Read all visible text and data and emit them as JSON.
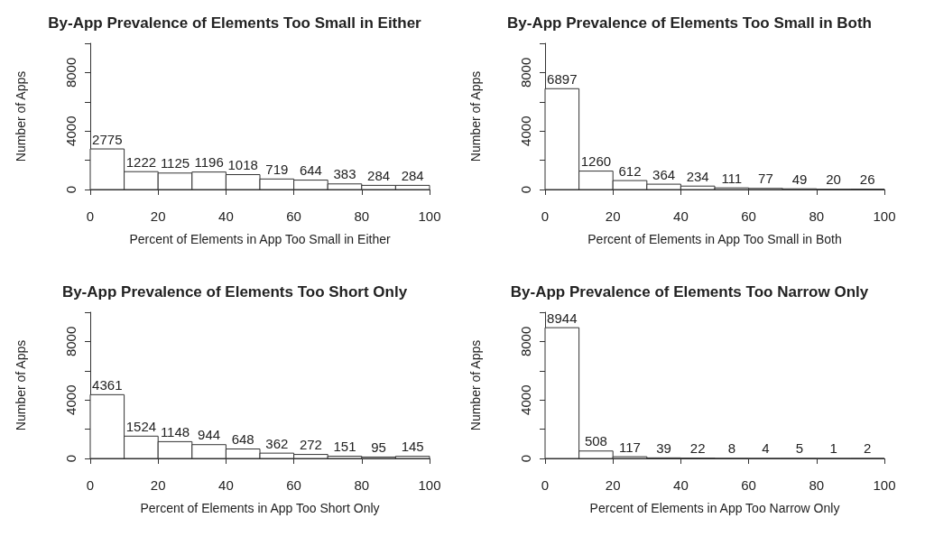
{
  "chart_data": [
    {
      "type": "histogram",
      "title": "By-App Prevalence of Elements Too Small in Either",
      "xlabel": "Percent of Elements in App Too Small in Either",
      "ylabel": "Number of Apps",
      "bins": [
        0,
        10,
        20,
        30,
        40,
        50,
        60,
        70,
        80,
        90,
        100
      ],
      "values": [
        2775,
        1222,
        1125,
        1196,
        1018,
        719,
        644,
        383,
        284,
        284
      ],
      "color": "#ffffff",
      "data_labels": true,
      "xlim": [
        0,
        100
      ],
      "xticks": [
        0,
        20,
        40,
        60,
        80,
        100
      ],
      "ylim": [
        0,
        10000
      ],
      "yticks": [
        0,
        {
          "value": 2000,
          "label": null
        },
        4000,
        {
          "value": 6000,
          "label": null
        },
        8000,
        {
          "value": 10000,
          "label": null
        }
      ],
      "grid": false
    },
    {
      "type": "histogram",
      "title": "By-App Prevalence of Elements Too Small in Both",
      "xlabel": "Percent of Elements in App Too Small in Both",
      "ylabel": "Number of Apps",
      "bins": [
        0,
        10,
        20,
        30,
        40,
        50,
        60,
        70,
        80,
        90,
        100
      ],
      "values": [
        6897,
        1260,
        612,
        364,
        234,
        111,
        77,
        49,
        20,
        26
      ],
      "color": "#ffffff",
      "data_labels": true,
      "xlim": [
        0,
        100
      ],
      "xticks": [
        0,
        20,
        40,
        60,
        80,
        100
      ],
      "ylim": [
        0,
        10000
      ],
      "yticks": [
        0,
        {
          "value": 2000,
          "label": null
        },
        4000,
        {
          "value": 6000,
          "label": null
        },
        8000,
        {
          "value": 10000,
          "label": null
        }
      ],
      "grid": false
    },
    {
      "type": "histogram",
      "title": "By-App Prevalence of Elements Too Short Only",
      "xlabel": "Percent of Elements in App Too Short Only",
      "ylabel": "Number of Apps",
      "bins": [
        0,
        10,
        20,
        30,
        40,
        50,
        60,
        70,
        80,
        90,
        100
      ],
      "values": [
        4361,
        1524,
        1148,
        944,
        648,
        362,
        272,
        151,
        95,
        145
      ],
      "color": "#ffffff",
      "data_labels": true,
      "xlim": [
        0,
        100
      ],
      "xticks": [
        0,
        20,
        40,
        60,
        80,
        100
      ],
      "ylim": [
        0,
        10000
      ],
      "yticks": [
        0,
        {
          "value": 2000,
          "label": null
        },
        4000,
        {
          "value": 6000,
          "label": null
        },
        8000,
        {
          "value": 10000,
          "label": null
        }
      ],
      "grid": false
    },
    {
      "type": "histogram",
      "title": "By-App Prevalence of Elements Too Narrow Only",
      "xlabel": "Percent of Elements in App Too Narrow Only",
      "ylabel": "Number of Apps",
      "bins": [
        0,
        10,
        20,
        30,
        40,
        50,
        60,
        70,
        80,
        90,
        100
      ],
      "values": [
        8944,
        508,
        117,
        39,
        22,
        8,
        4,
        5,
        1,
        2
      ],
      "color": "#ffffff",
      "data_labels": true,
      "xlim": [
        0,
        100
      ],
      "xticks": [
        0,
        20,
        40,
        60,
        80,
        100
      ],
      "ylim": [
        0,
        10000
      ],
      "yticks": [
        0,
        {
          "value": 2000,
          "label": null
        },
        4000,
        {
          "value": 6000,
          "label": null
        },
        8000,
        {
          "value": 10000,
          "label": null
        }
      ],
      "grid": false
    }
  ]
}
